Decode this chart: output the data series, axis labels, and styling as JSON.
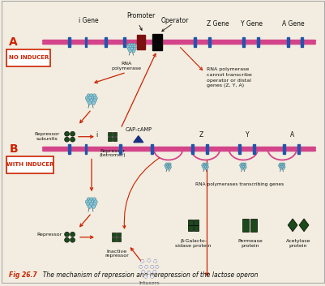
{
  "bg_color": "#f2ede0",
  "border_color": "#aaaaaa",
  "dna_color": "#d4448a",
  "gene_block_color": "#2255aa",
  "operator_color": "#0a1a0a",
  "promoter_color": "#6a0a0a",
  "text_color": "#111111",
  "red_label": "#cc2200",
  "dark_green": "#1a4a1a",
  "light_blue": "#88c8d8",
  "blue_dark": "#1a3080",
  "caption": "Fig 26.7",
  "caption_full": "  The mechanism of repression and derepression of the lactose operon",
  "no_inducer": "NO INDUCER",
  "with_inducer": "WITH INDUCER",
  "rna_pol_A": "RNA\npolymerase",
  "cannot_text": "RNA polymerase\ncannot transcribe\noperator or distal\ngenes (Z, Y, A)",
  "repressor_sub": "Repressor\nsubunits",
  "repressor_tet": "Repressor\n(tetromer)",
  "inactive_rep": "Inactive\nrepressor",
  "inducers": "Intucers",
  "rna_pol_B": "RNA polymerases transcribing genes",
  "beta_gal": "β-Galacto-\nsidase protein",
  "permease": "Permease\nprotein",
  "acetylase": "Acetylase\nprotein",
  "promoter_label": "Promoter",
  "operator_label": "Operator",
  "cap_camp": "CAP-cAMP",
  "sec_A": "A",
  "sec_B": "B"
}
